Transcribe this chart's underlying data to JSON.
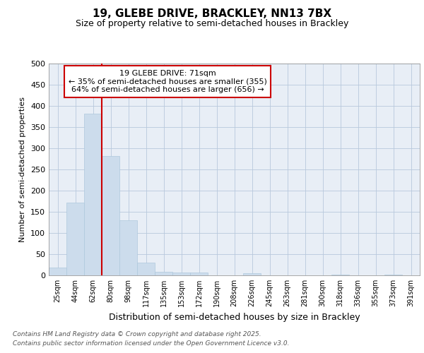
{
  "title_line1": "19, GLEBE DRIVE, BRACKLEY, NN13 7BX",
  "title_line2": "Size of property relative to semi-detached houses in Brackley",
  "xlabel": "Distribution of semi-detached houses by size in Brackley",
  "ylabel": "Number of semi-detached properties",
  "categories": [
    "25sqm",
    "44sqm",
    "62sqm",
    "80sqm",
    "98sqm",
    "117sqm",
    "135sqm",
    "153sqm",
    "172sqm",
    "190sqm",
    "208sqm",
    "226sqm",
    "245sqm",
    "263sqm",
    "281sqm",
    "300sqm",
    "318sqm",
    "336sqm",
    "355sqm",
    "373sqm",
    "391sqm"
  ],
  "values": [
    18,
    172,
    381,
    281,
    130,
    30,
    9,
    7,
    7,
    0,
    0,
    5,
    0,
    0,
    0,
    0,
    2,
    0,
    0,
    2,
    0
  ],
  "bar_color": "#ccdcec",
  "bar_edge_color": "#aec8dc",
  "grid_color": "#b8c8dc",
  "background_color": "#e8eef6",
  "annotation_title": "19 GLEBE DRIVE: 71sqm",
  "annotation_line1": "← 35% of semi-detached houses are smaller (355)",
  "annotation_line2": "64% of semi-detached houses are larger (656) →",
  "annotation_box_facecolor": "#ffffff",
  "annotation_box_edgecolor": "#cc0000",
  "property_line_color": "#cc0000",
  "property_line_x": 2.5,
  "ylim": [
    0,
    500
  ],
  "yticks": [
    0,
    50,
    100,
    150,
    200,
    250,
    300,
    350,
    400,
    450,
    500
  ],
  "footer_line1": "Contains HM Land Registry data © Crown copyright and database right 2025.",
  "footer_line2": "Contains public sector information licensed under the Open Government Licence v3.0."
}
